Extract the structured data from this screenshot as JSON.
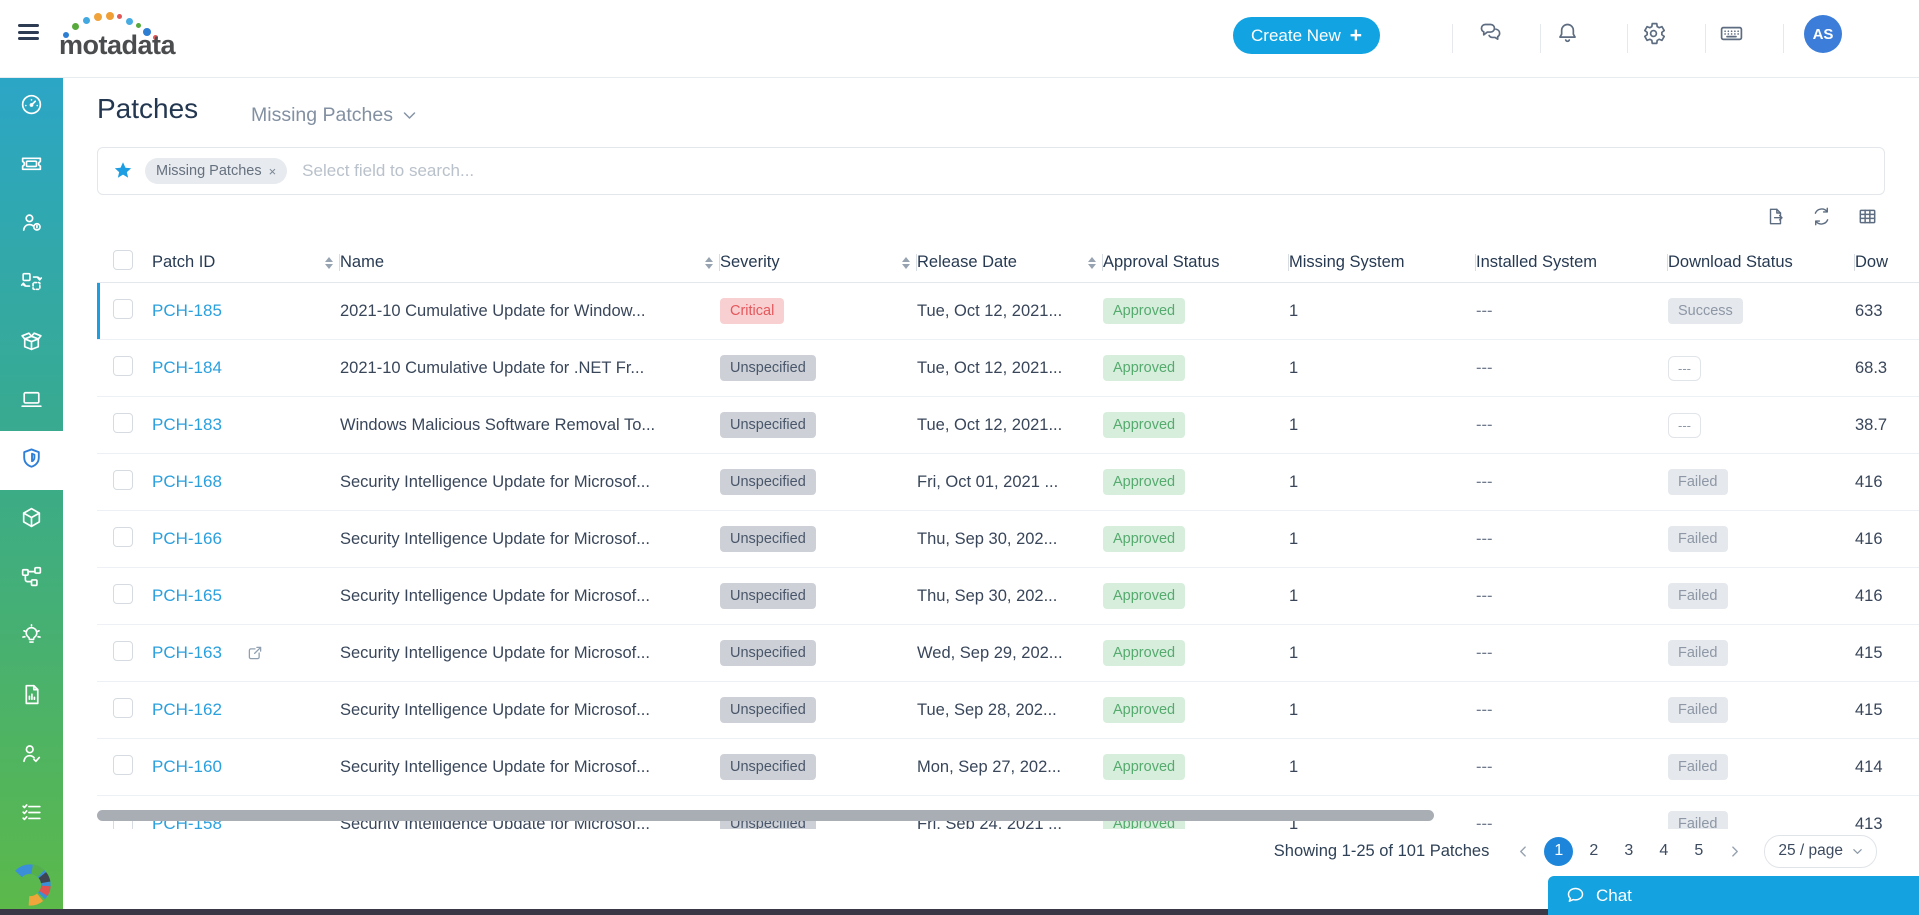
{
  "topbar": {
    "logo_text": "motadata",
    "create_new_label": "Create New",
    "avatar_initials": "AS",
    "icons": [
      "chat",
      "notifications",
      "settings",
      "keyboard"
    ]
  },
  "sidebar": {
    "items": [
      {
        "icon": "dashboard",
        "active": false
      },
      {
        "icon": "ticket",
        "active": false
      },
      {
        "icon": "users",
        "active": false
      },
      {
        "icon": "change",
        "active": false
      },
      {
        "icon": "release",
        "active": false
      },
      {
        "icon": "asset",
        "active": false
      },
      {
        "icon": "patch",
        "active": true
      },
      {
        "icon": "package",
        "active": false
      },
      {
        "icon": "network",
        "active": false
      },
      {
        "icon": "solution",
        "active": false
      },
      {
        "icon": "report",
        "active": false
      },
      {
        "icon": "approval",
        "active": false
      },
      {
        "icon": "task",
        "active": false
      }
    ]
  },
  "page": {
    "title": "Patches",
    "view_label": "Missing Patches"
  },
  "filter": {
    "chip_label": "Missing Patches",
    "chip_close": "×",
    "placeholder": "Select field to search...",
    "toolbar_icons": [
      "export",
      "refresh",
      "columns"
    ]
  },
  "table": {
    "columns": [
      {
        "label": "Patch ID",
        "sortable": true
      },
      {
        "label": "Name",
        "sortable": true
      },
      {
        "label": "Severity",
        "sortable": true
      },
      {
        "label": "Release Date",
        "sortable": true
      },
      {
        "label": "Approval Status",
        "sortable": false
      },
      {
        "label": "Missing System",
        "sortable": false
      },
      {
        "label": "Installed System",
        "sortable": false
      },
      {
        "label": "Download Status",
        "sortable": false
      },
      {
        "label": "Dow",
        "sortable": false
      }
    ],
    "rows": [
      {
        "id": "PCH-185",
        "external": false,
        "name": "2021-10 Cumulative Update for Window...",
        "severity": "Critical",
        "severity_variant": "critical",
        "release_date": "Tue, Oct 12, 2021...",
        "approval": "Approved",
        "missing_system": "1",
        "installed_system": "---",
        "download_status": "Success",
        "download_variant": "gray",
        "download_size": "633",
        "selected": true
      },
      {
        "id": "PCH-184",
        "external": false,
        "name": "2021-10 Cumulative Update for .NET Fr...",
        "severity": "Unspecified",
        "severity_variant": "gray",
        "release_date": "Tue, Oct 12, 2021...",
        "approval": "Approved",
        "missing_system": "1",
        "installed_system": "---",
        "download_status": "---",
        "download_variant": "outline",
        "download_size": "68.3",
        "selected": false
      },
      {
        "id": "PCH-183",
        "external": false,
        "name": "Windows Malicious Software Removal To...",
        "severity": "Unspecified",
        "severity_variant": "gray",
        "release_date": "Tue, Oct 12, 2021...",
        "approval": "Approved",
        "missing_system": "1",
        "installed_system": "---",
        "download_status": "---",
        "download_variant": "outline",
        "download_size": "38.7",
        "selected": false
      },
      {
        "id": "PCH-168",
        "external": false,
        "name": "Security Intelligence Update for Microsof...",
        "severity": "Unspecified",
        "severity_variant": "gray",
        "release_date": "Fri, Oct 01, 2021 ...",
        "approval": "Approved",
        "missing_system": "1",
        "installed_system": "---",
        "download_status": "Failed",
        "download_variant": "gray",
        "download_size": "416",
        "selected": false
      },
      {
        "id": "PCH-166",
        "external": false,
        "name": "Security Intelligence Update for Microsof...",
        "severity": "Unspecified",
        "severity_variant": "gray",
        "release_date": "Thu, Sep 30, 202...",
        "approval": "Approved",
        "missing_system": "1",
        "installed_system": "---",
        "download_status": "Failed",
        "download_variant": "gray",
        "download_size": "416",
        "selected": false
      },
      {
        "id": "PCH-165",
        "external": false,
        "name": "Security Intelligence Update for Microsof...",
        "severity": "Unspecified",
        "severity_variant": "gray",
        "release_date": "Thu, Sep 30, 202...",
        "approval": "Approved",
        "missing_system": "1",
        "installed_system": "---",
        "download_status": "Failed",
        "download_variant": "gray",
        "download_size": "416",
        "selected": false
      },
      {
        "id": "PCH-163",
        "external": true,
        "name": "Security Intelligence Update for Microsof...",
        "severity": "Unspecified",
        "severity_variant": "gray",
        "release_date": "Wed, Sep 29, 202...",
        "approval": "Approved",
        "missing_system": "1",
        "installed_system": "---",
        "download_status": "Failed",
        "download_variant": "gray",
        "download_size": "415",
        "selected": false
      },
      {
        "id": "PCH-162",
        "external": false,
        "name": "Security Intelligence Update for Microsof...",
        "severity": "Unspecified",
        "severity_variant": "gray",
        "release_date": "Tue, Sep 28, 202...",
        "approval": "Approved",
        "missing_system": "1",
        "installed_system": "---",
        "download_status": "Failed",
        "download_variant": "gray",
        "download_size": "415",
        "selected": false
      },
      {
        "id": "PCH-160",
        "external": false,
        "name": "Security Intelligence Update for Microsof...",
        "severity": "Unspecified",
        "severity_variant": "gray",
        "release_date": "Mon, Sep 27, 202...",
        "approval": "Approved",
        "missing_system": "1",
        "installed_system": "---",
        "download_status": "Failed",
        "download_variant": "gray",
        "download_size": "414",
        "selected": false
      },
      {
        "id": "PCH-158",
        "external": false,
        "name": "Security Intelligence Update for Microsof...",
        "severity": "Unspecified",
        "severity_variant": "gray",
        "release_date": "Fri, Sep 24, 2021 ...",
        "approval": "Approved",
        "missing_system": "1",
        "installed_system": "---",
        "download_status": "Failed",
        "download_variant": "gray",
        "download_size": "413",
        "selected": false
      }
    ]
  },
  "pagination": {
    "summary": "Showing 1-25 of 101 Patches",
    "pages": [
      "1",
      "2",
      "3",
      "4",
      "5"
    ],
    "active_page": "1",
    "page_size_label": "25 / page"
  },
  "chat": {
    "label": "Chat"
  },
  "colors": {
    "accent_blue": "#14a2e0",
    "sidebar_top": "#2ba6c6",
    "sidebar_bottom": "#5cb949",
    "link_blue": "#2aa0de",
    "approved_green": "#55aa6e",
    "critical_red": "#e4575c",
    "severity_gray": "#cdd1d7",
    "active_page_blue": "#1e86da",
    "avatar_blue": "#3b7dd8"
  }
}
